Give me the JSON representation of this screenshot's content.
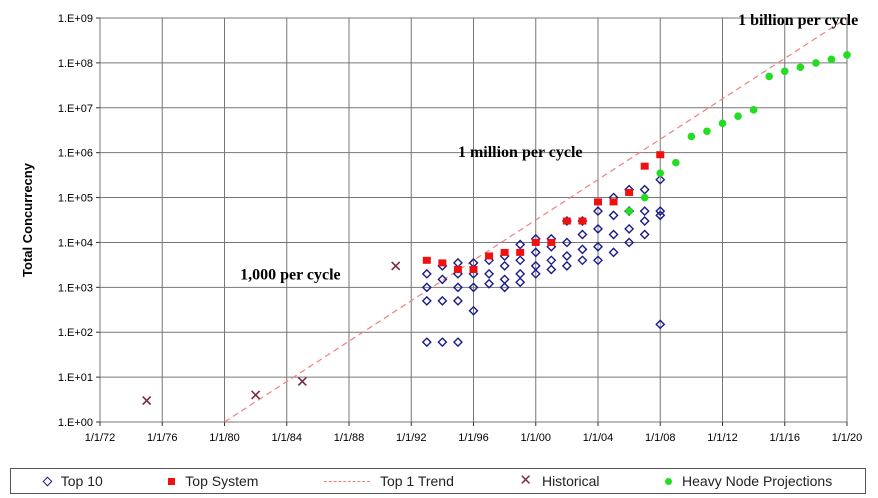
{
  "chart_data": {
    "type": "scatter",
    "ylabel": "Total Concurrecny",
    "y_scale": "log",
    "ylim": [
      1,
      1000000000
    ],
    "y_ticks": [
      "1.E+00",
      "1.E+01",
      "1.E+02",
      "1.E+03",
      "1.E+04",
      "1.E+05",
      "1.E+06",
      "1.E+07",
      "1.E+08",
      "1.E+09"
    ],
    "xlim": [
      "1/1/72",
      "1/1/20"
    ],
    "x_ticks": [
      "1/1/72",
      "1/1/76",
      "1/1/80",
      "1/1/84",
      "1/1/88",
      "1/1/92",
      "1/1/96",
      "1/1/00",
      "1/1/04",
      "1/1/08",
      "1/1/12",
      "1/1/16",
      "1/1/20"
    ],
    "grid": true,
    "legend_position": "bottom",
    "annotations": [
      {
        "text": "1 billion per cycle",
        "x": "1/1/13",
        "y": 700000000
      },
      {
        "text": "1 million per cycle",
        "x": "1/1/95",
        "y": 800000
      },
      {
        "text": "1,000 per cycle",
        "x": "1/1/81",
        "y": 1500
      }
    ],
    "series": [
      {
        "name": "Top 10",
        "marker": "diamond",
        "color": "#1a1a8a",
        "points": [
          [
            "1/1/93",
            2000
          ],
          [
            "1/1/93",
            1000
          ],
          [
            "1/1/93",
            500
          ],
          [
            "1/1/93",
            60
          ],
          [
            "1/1/94",
            3000
          ],
          [
            "1/1/94",
            1500
          ],
          [
            "1/1/94",
            500
          ],
          [
            "1/1/94",
            60
          ],
          [
            "1/1/95",
            3500
          ],
          [
            "1/1/95",
            2000
          ],
          [
            "1/1/95",
            1000
          ],
          [
            "1/1/95",
            500
          ],
          [
            "1/1/95",
            60
          ],
          [
            "1/1/96",
            3500
          ],
          [
            "1/1/96",
            2000
          ],
          [
            "1/1/96",
            1000
          ],
          [
            "1/1/96",
            300
          ],
          [
            "1/1/97",
            4000
          ],
          [
            "1/1/97",
            2000
          ],
          [
            "1/1/97",
            1200
          ],
          [
            "1/1/98",
            5000
          ],
          [
            "1/1/98",
            3000
          ],
          [
            "1/1/98",
            1500
          ],
          [
            "1/1/98",
            1000
          ],
          [
            "1/1/99",
            9000
          ],
          [
            "1/1/99",
            4000
          ],
          [
            "1/1/99",
            2000
          ],
          [
            "1/1/99",
            1300
          ],
          [
            "1/1/00",
            12000
          ],
          [
            "1/1/00",
            6000
          ],
          [
            "1/1/00",
            3000
          ],
          [
            "1/1/00",
            2000
          ],
          [
            "1/1/01",
            12000
          ],
          [
            "1/1/01",
            8000
          ],
          [
            "1/1/01",
            4000
          ],
          [
            "1/1/01",
            2500
          ],
          [
            "1/1/02",
            30000
          ],
          [
            "1/1/02",
            10000
          ],
          [
            "1/1/02",
            5000
          ],
          [
            "1/1/02",
            3000
          ],
          [
            "1/1/03",
            30000
          ],
          [
            "1/1/03",
            15000
          ],
          [
            "1/1/03",
            7000
          ],
          [
            "1/1/03",
            4000
          ],
          [
            "1/1/04",
            50000
          ],
          [
            "1/1/04",
            20000
          ],
          [
            "1/1/04",
            8000
          ],
          [
            "1/1/04",
            4000
          ],
          [
            "1/1/05",
            100000
          ],
          [
            "1/1/05",
            40000
          ],
          [
            "1/1/05",
            15000
          ],
          [
            "1/1/05",
            6000
          ],
          [
            "1/1/06",
            150000
          ],
          [
            "1/1/06",
            50000
          ],
          [
            "1/1/06",
            20000
          ],
          [
            "1/1/06",
            10000
          ],
          [
            "1/1/07",
            150000
          ],
          [
            "1/1/07",
            50000
          ],
          [
            "1/1/07",
            30000
          ],
          [
            "1/1/07",
            15000
          ],
          [
            "1/1/08",
            250000
          ],
          [
            "1/1/08",
            50000
          ],
          [
            "1/1/08",
            40000
          ],
          [
            "1/1/08",
            150
          ]
        ]
      },
      {
        "name": "Top System",
        "marker": "square",
        "color": "#ee1111",
        "points": [
          [
            "1/1/93",
            4000
          ],
          [
            "1/1/94",
            3500
          ],
          [
            "1/1/95",
            2500
          ],
          [
            "1/1/96",
            2500
          ],
          [
            "1/1/97",
            5000
          ],
          [
            "1/1/98",
            6000
          ],
          [
            "1/1/99",
            6000
          ],
          [
            "1/1/00",
            10000
          ],
          [
            "1/1/01",
            10000
          ],
          [
            "1/1/02",
            30000
          ],
          [
            "1/1/03",
            30000
          ],
          [
            "1/1/04",
            80000
          ],
          [
            "1/1/05",
            80000
          ],
          [
            "1/1/06",
            130000
          ],
          [
            "1/1/07",
            500000
          ],
          [
            "1/1/08",
            900000
          ]
        ]
      },
      {
        "name": "Top 1 Trend",
        "marker": "dashed-line",
        "color": "#f08080",
        "points": [
          [
            "1/1/80",
            1
          ],
          [
            "1/1/20",
            1000000000
          ]
        ]
      },
      {
        "name": "Historical",
        "marker": "x",
        "color": "#7a2a4a",
        "points": [
          [
            "1/1/75",
            3
          ],
          [
            "1/1/82",
            4
          ],
          [
            "1/1/85",
            8
          ],
          [
            "1/1/91",
            3000
          ]
        ]
      },
      {
        "name": "Heavy Node Projections",
        "marker": "dot",
        "color": "#22dd22",
        "points": [
          [
            "1/1/06",
            50000
          ],
          [
            "1/1/07",
            100000
          ],
          [
            "1/1/08",
            350000
          ],
          [
            "1/1/09",
            600000
          ],
          [
            "1/1/10",
            2300000
          ],
          [
            "1/1/11",
            3000000
          ],
          [
            "1/1/12",
            4500000
          ],
          [
            "1/1/13",
            6500000
          ],
          [
            "1/1/14",
            9000000
          ],
          [
            "1/1/15",
            50000000
          ],
          [
            "1/1/16",
            65000000
          ],
          [
            "1/1/17",
            80000000
          ],
          [
            "1/1/18",
            100000000
          ],
          [
            "1/1/19",
            120000000
          ],
          [
            "1/1/20",
            150000000
          ]
        ]
      }
    ]
  }
}
